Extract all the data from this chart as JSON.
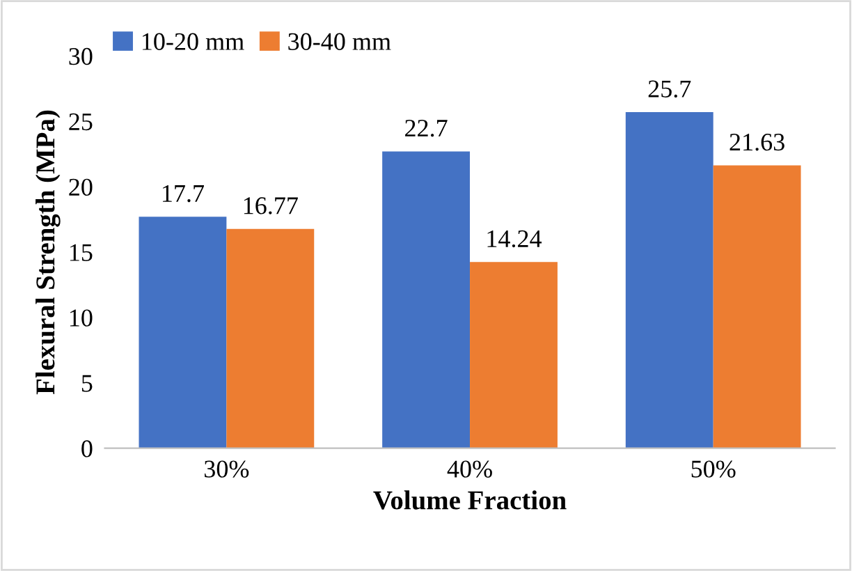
{
  "chart_data": {
    "type": "bar",
    "xlabel": "Volume Fraction",
    "ylabel": "Flexural Strength (MPa)",
    "categories": [
      "30%",
      "40%",
      "50%"
    ],
    "series": [
      {
        "name": "10-20 mm",
        "color": "#4472c4",
        "values": [
          17.7,
          22.7,
          25.7
        ]
      },
      {
        "name": "30-40 mm",
        "color": "#ed7d31",
        "values": [
          16.77,
          14.24,
          21.63
        ]
      }
    ],
    "ylim": [
      0,
      30
    ],
    "yticks": [
      0,
      5,
      10,
      15,
      20,
      25,
      30
    ],
    "grid": false,
    "legend": "top left",
    "data_labels": true
  }
}
